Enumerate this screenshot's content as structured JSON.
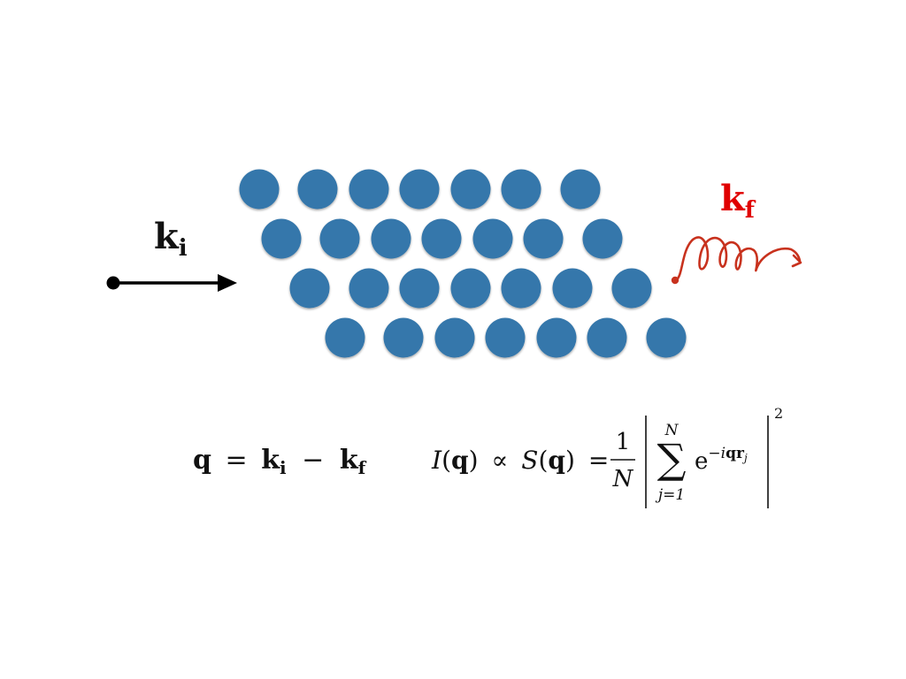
{
  "colors": {
    "atom": "#3677ab",
    "incident": "#000000",
    "scattered": "#c8321e",
    "kf_label": "#e00000",
    "text": "#111111"
  },
  "lattice": {
    "rows": [
      7,
      7,
      7,
      7
    ]
  },
  "labels": {
    "ki": {
      "main": "k",
      "sub": "i"
    },
    "kf": {
      "main": "k",
      "sub": "f"
    }
  },
  "eq1": {
    "q": "q",
    "eq": "=",
    "k1": "k",
    "s1": "i",
    "minus": "−",
    "k2": "k",
    "s2": "f"
  },
  "eq2": {
    "I": "I",
    "lp1": "(",
    "q1": "q",
    "rp1": ")",
    "prop": "∝",
    "S": "S",
    "lp2": "(",
    "q2": "q",
    "rp2": ")",
    "eq": "=",
    "num": "1",
    "den": "N",
    "sum": "∑",
    "upper": "N",
    "lower": "j=1",
    "e": "e",
    "exp_minus": "−",
    "exp_i": "i",
    "exp_q": "q",
    "exp_r": "r",
    "exp_j": "j",
    "pow": "2"
  },
  "icons": {
    "incident": "arrow-right-icon",
    "scattered": "wavy-arrow-icon"
  }
}
